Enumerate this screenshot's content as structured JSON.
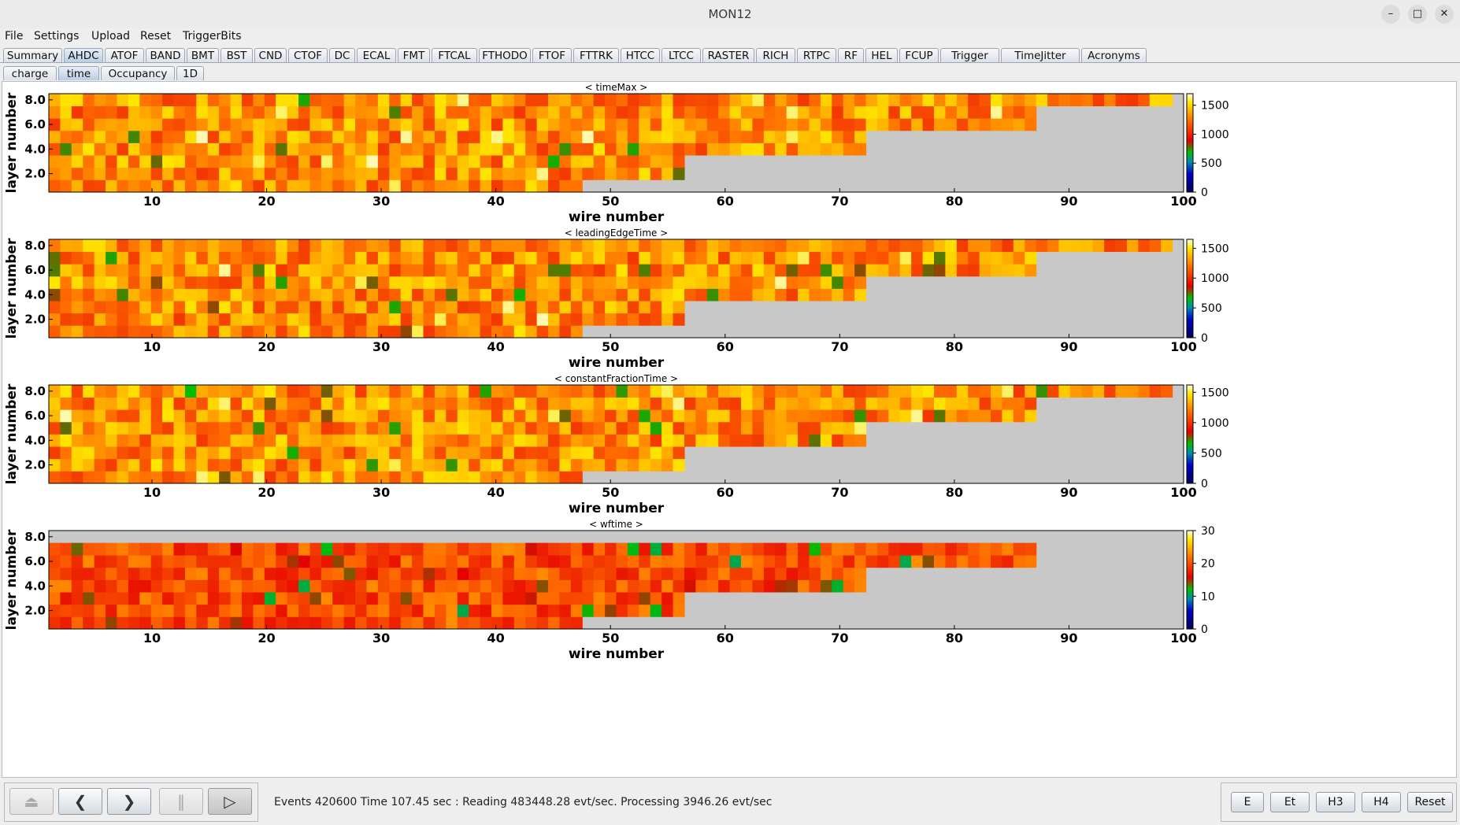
{
  "window": {
    "title": "MON12",
    "minimize_label": "–",
    "maximize_label": "□",
    "close_label": "✕"
  },
  "menu": [
    "File",
    "Settings",
    "Upload",
    "Reset",
    "TriggerBits"
  ],
  "detector_tabs": [
    "Summary",
    "AHDC",
    "ATOF",
    "BAND",
    "BMT",
    "BST",
    "CND",
    "CTOF",
    "DC",
    "ECAL",
    "FMT",
    "FTCAL",
    "FTHODO",
    "FTOF",
    "FTTRK",
    "HTCC",
    "LTCC",
    "RASTER",
    "RICH",
    "RTPC",
    "RF",
    "HEL",
    "FCUP",
    "Trigger",
    "TimeJitter",
    "Acronyms"
  ],
  "selected_detector_tab": "AHDC",
  "view_tabs": [
    "charge",
    "time",
    "Occupancy",
    "1D"
  ],
  "selected_view_tab": "time",
  "plots": [
    {
      "title": "< timeMax >",
      "xlabel": "wire number",
      "ylabel": "layer number",
      "zticks": [
        "0",
        "500",
        "1000",
        "1500"
      ],
      "zmax": 1700,
      "mode": "time",
      "seed": 11
    },
    {
      "title": "< leadingEdgeTime >",
      "xlabel": "wire number",
      "ylabel": "layer number",
      "zticks": [
        "0",
        "500",
        "1000",
        "1500"
      ],
      "zmax": 1650,
      "mode": "time",
      "seed": 23
    },
    {
      "title": "< constantFractionTime >",
      "xlabel": "wire number",
      "ylabel": "layer number",
      "zticks": [
        "0",
        "500",
        "1000",
        "1500"
      ],
      "zmax": 1620,
      "mode": "time",
      "seed": 37
    },
    {
      "title": "< wftime >",
      "xlabel": "wire number",
      "ylabel": "layer number",
      "zticks": [
        "0",
        "10",
        "20",
        "30"
      ],
      "zmax": 30,
      "mode": "wf",
      "seed": 53
    }
  ],
  "chart_data": [
    {
      "type": "heatmap",
      "title": "< timeMax >",
      "xlabel": "wire number",
      "ylabel": "layer number",
      "xlim": [
        1,
        100
      ],
      "ylim": [
        1,
        9
      ],
      "xticks": [
        "10",
        "20",
        "30",
        "40",
        "50",
        "60",
        "70",
        "80",
        "90",
        "100"
      ],
      "yticks": [
        "2.0",
        "4.0",
        "6.0",
        "8.0"
      ],
      "zlim": [
        0,
        1700
      ],
      "colorbar_ticks": [
        "0",
        "500",
        "1000",
        "1500"
      ]
    },
    {
      "type": "heatmap",
      "title": "< leadingEdgeTime >",
      "xlabel": "wire number",
      "ylabel": "layer number",
      "xlim": [
        1,
        100
      ],
      "ylim": [
        1,
        9
      ],
      "xticks": [
        "10",
        "20",
        "30",
        "40",
        "50",
        "60",
        "70",
        "80",
        "90",
        "100"
      ],
      "yticks": [
        "2.0",
        "4.0",
        "6.0",
        "8.0"
      ],
      "zlim": [
        0,
        1650
      ],
      "colorbar_ticks": [
        "0",
        "500",
        "1000",
        "1500"
      ]
    },
    {
      "type": "heatmap",
      "title": "< constantFractionTime >",
      "xlabel": "wire number",
      "ylabel": "layer number",
      "xlim": [
        1,
        100
      ],
      "ylim": [
        1,
        9
      ],
      "xticks": [
        "10",
        "20",
        "30",
        "40",
        "50",
        "60",
        "70",
        "80",
        "90",
        "100"
      ],
      "yticks": [
        "2.0",
        "4.0",
        "6.0",
        "8.0"
      ],
      "zlim": [
        0,
        1620
      ],
      "colorbar_ticks": [
        "0",
        "500",
        "1000",
        "1500"
      ]
    },
    {
      "type": "heatmap",
      "title": "< wftime >",
      "xlabel": "wire number",
      "ylabel": "layer number",
      "xlim": [
        1,
        100
      ],
      "ylim": [
        1,
        9
      ],
      "xticks": [
        "10",
        "20",
        "30",
        "40",
        "50",
        "60",
        "70",
        "80",
        "90",
        "100"
      ],
      "yticks": [
        "2.0",
        "4.0",
        "6.0",
        "8.0"
      ],
      "zlim": [
        0,
        30
      ],
      "colorbar_ticks": [
        "0",
        "10",
        "20",
        "30"
      ]
    }
  ],
  "empty_bin_color": "#c8c8c8",
  "layer_wire_counts": [
    47,
    56,
    56,
    72,
    72,
    87,
    87,
    99
  ],
  "status": {
    "text": "Events 420600  Time 107.45 sec : Reading 483448.28  evt/sec. Processing 3946.26 evt/sec",
    "buttons": [
      "E",
      "Et",
      "H3",
      "H4",
      "Reset"
    ],
    "nav_icons": [
      "eject-icon",
      "previous-icon",
      "next-icon",
      "pause-icon",
      "play-icon"
    ]
  }
}
